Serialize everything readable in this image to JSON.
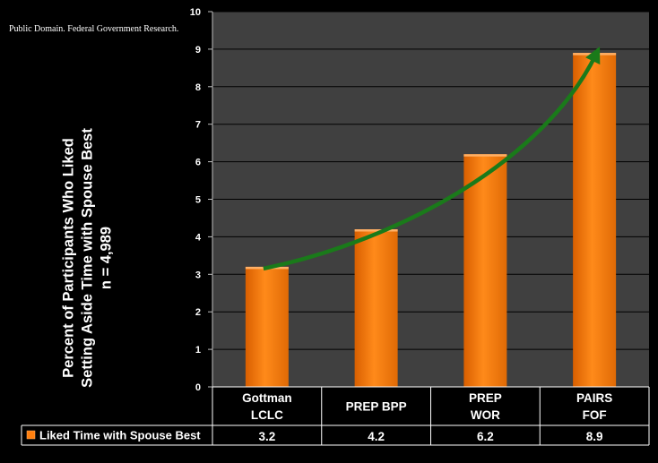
{
  "attribution": "Public Domain. Federal Government Research.",
  "ylabel_lines": [
    "Percent of Participants Who Liked",
    "Setting Aside Time with Spouse Best",
    "n = 4,989"
  ],
  "colors": {
    "background": "#000000",
    "plot_background": "#404040",
    "bar": "#ff7f0e",
    "arrow": "#1a7a1a",
    "gridline": "#000000",
    "text": "#ffffff"
  },
  "chart_data": {
    "type": "bar",
    "title": "",
    "xlabel": "",
    "ylabel": "Percent of Participants Who Liked Setting Aside Time with Spouse Best n = 4,989",
    "categories": [
      [
        "Gottman",
        "LCLC"
      ],
      [
        "PREP BPP"
      ],
      [
        "PREP",
        "WOR"
      ],
      [
        "PAIRS",
        "FOF"
      ]
    ],
    "series": [
      {
        "name": "Liked Time with Spouse Best",
        "values": [
          3.2,
          4.2,
          6.2,
          8.9
        ]
      }
    ],
    "ylim": [
      0,
      10
    ],
    "yticks": [
      0,
      1,
      2,
      3,
      4,
      5,
      6,
      7,
      8,
      9,
      10
    ],
    "grid": true,
    "legend": "data table below the chart",
    "data_table": {
      "values": [
        "3.2",
        "4.2",
        "6.2",
        "8.9"
      ]
    },
    "annotation": "green curved arrow rising from the first bar to the last bar"
  }
}
